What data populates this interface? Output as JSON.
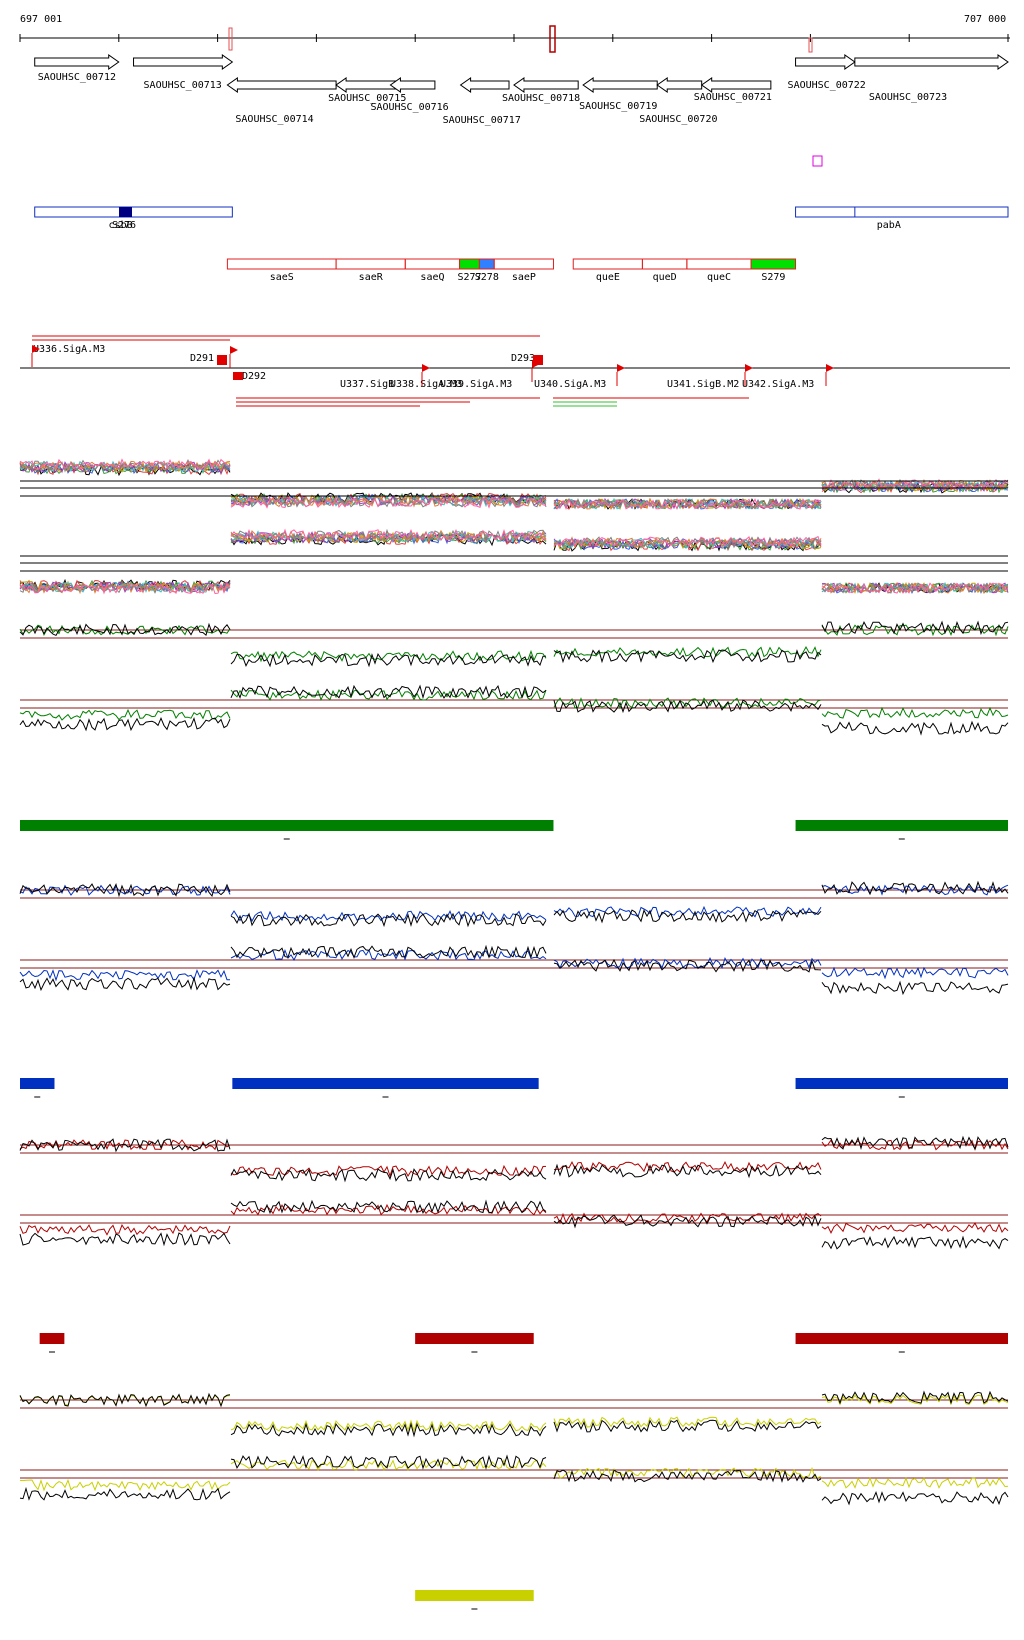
{
  "ruler": {
    "start_label": "697 001",
    "end_label": "707 000",
    "start": 697001,
    "end": 707000
  },
  "genes": [
    {
      "name": "SAOUHSC_00712",
      "start": 697150,
      "end": 698000,
      "strand": "+"
    },
    {
      "name": "SAOUHSC_00713",
      "start": 698150,
      "end": 699150,
      "strand": "+"
    },
    {
      "name": "SAOUHSC_00714",
      "start": 699100,
      "end": 700200,
      "strand": "-"
    },
    {
      "name": "SAOUHSC_00715",
      "start": 700200,
      "end": 700900,
      "strand": "-"
    },
    {
      "name": "SAOUHSC_00716",
      "start": 700750,
      "end": 701200,
      "strand": "-"
    },
    {
      "name": "SAOUHSC_00717",
      "start": 701460,
      "end": 701950,
      "strand": "-"
    },
    {
      "name": "SAOUHSC_00718",
      "start": 702000,
      "end": 702650,
      "strand": "-"
    },
    {
      "name": "SAOUHSC_00719",
      "start": 702700,
      "end": 703450,
      "strand": "-"
    },
    {
      "name": "SAOUHSC_00720",
      "start": 703450,
      "end": 703900,
      "strand": "-"
    },
    {
      "name": "SAOUHSC_00721",
      "start": 703900,
      "end": 704600,
      "strand": "-"
    },
    {
      "name": "SAOUHSC_00722",
      "start": 704850,
      "end": 705450,
      "strand": "+"
    },
    {
      "name": "SAOUHSC_00723",
      "start": 705450,
      "end": 707000,
      "strand": "+"
    }
  ],
  "operons_blue": [
    {
      "label": "csbB",
      "start": 697150,
      "end": 699150,
      "feature": "S276"
    },
    {
      "label": "pabA",
      "start": 704850,
      "end": 707000
    }
  ],
  "operons_red": [
    {
      "label": "saeS",
      "start": 699100,
      "end": 700200
    },
    {
      "label": "saeR",
      "start": 700200,
      "end": 700900
    },
    {
      "label": "saeQ",
      "start": 700900,
      "end": 701450
    },
    {
      "label": "S277",
      "start": 701450,
      "end": 701650
    },
    {
      "label": "S278",
      "start": 701650,
      "end": 701800
    },
    {
      "label": "saeP",
      "start": 701800,
      "end": 702400
    },
    {
      "label": "queE",
      "start": 702600,
      "end": 703300
    },
    {
      "label": "queD",
      "start": 703300,
      "end": 703750
    },
    {
      "label": "queC",
      "start": 703750,
      "end": 704400
    },
    {
      "label": "S279",
      "start": 704400,
      "end": 704850
    }
  ],
  "promoters": [
    {
      "label": "U336.SigA.M3"
    },
    {
      "label": "D291"
    },
    {
      "label": "D292"
    },
    {
      "label": "D293"
    },
    {
      "label": "U337.SigB"
    },
    {
      "label": "U338.SigA.M3"
    },
    {
      "label": "U339.SigA.M3"
    },
    {
      "label": "U340.SigA.M3"
    },
    {
      "label": "U341.SigB.M2"
    },
    {
      "label": "U342.SigA.M3"
    }
  ],
  "expression_panels": [
    {
      "color": "#008000",
      "bars": [
        {
          "start": 697001,
          "end": 702400
        },
        {
          "start": 704850,
          "end": 707000
        }
      ]
    },
    {
      "color": "#0030c0",
      "bars": [
        {
          "start": 697001,
          "end": 697350
        },
        {
          "start": 699150,
          "end": 702250
        },
        {
          "start": 704850,
          "end": 707000
        }
      ]
    },
    {
      "color": "#b00000",
      "bars": [
        {
          "start": 697200,
          "end": 697450
        },
        {
          "start": 701000,
          "end": 702200
        },
        {
          "start": 704850,
          "end": 707000
        }
      ]
    },
    {
      "color": "#c8d000",
      "bars": [
        {
          "start": 701000,
          "end": 702200
        }
      ]
    }
  ],
  "colors": {
    "arrow_stroke": "#000000",
    "operon_blue": "#1030c0",
    "operon_red": "#e02020",
    "highlight_green": "#00e000",
    "highlight_blue": "#3080ff",
    "hline": "#8b1a1a"
  }
}
